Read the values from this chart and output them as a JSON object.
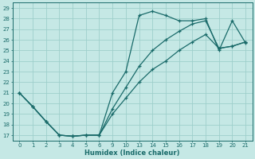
{
  "xlabel": "Humidex (Indice chaleur)",
  "background_color": "#c5e8e5",
  "grid_color": "#9ecfcb",
  "line_color": "#1a6b6a",
  "xtick_labels": [
    "0",
    "1",
    "2",
    "3",
    "4",
    "5",
    "6",
    "9",
    "10",
    "13",
    "14",
    "15",
    "16",
    "17",
    "18",
    "19",
    "20",
    "21"
  ],
  "ytick_labels": [
    "17",
    "18",
    "19",
    "20",
    "21",
    "22",
    "23",
    "24",
    "25",
    "26",
    "27",
    "28",
    "29"
  ],
  "ytick_vals": [
    17,
    18,
    19,
    20,
    21,
    22,
    23,
    24,
    25,
    26,
    27,
    28,
    29
  ],
  "ylim": [
    16.5,
    29.5
  ],
  "lines": [
    {
      "xi": [
        0,
        1,
        2,
        3,
        4,
        5,
        6,
        7,
        8,
        9,
        10,
        11,
        12,
        13,
        14,
        15,
        16,
        17
      ],
      "y": [
        21,
        19.7,
        18.3,
        17.0,
        16.9,
        17.0,
        17.0,
        21.0,
        23.0,
        28.3,
        28.7,
        28.3,
        27.8,
        27.8,
        28.0,
        25.0,
        27.8,
        25.7
      ]
    },
    {
      "xi": [
        0,
        1,
        2,
        3,
        4,
        5,
        6,
        7,
        8,
        9,
        10,
        11,
        12,
        13,
        14,
        15,
        16,
        17
      ],
      "y": [
        21,
        19.7,
        18.3,
        17.0,
        16.9,
        17.0,
        17.0,
        19.5,
        21.5,
        23.5,
        25.0,
        26.0,
        26.8,
        27.5,
        27.8,
        25.2,
        25.4,
        25.8
      ]
    },
    {
      "xi": [
        0,
        1,
        2,
        3,
        4,
        5,
        6,
        7,
        8,
        9,
        10,
        11,
        12,
        13,
        14,
        15,
        16,
        17
      ],
      "y": [
        21,
        19.7,
        18.3,
        17.0,
        16.9,
        17.0,
        17.0,
        19.0,
        20.5,
        22.0,
        23.2,
        24.0,
        25.0,
        25.8,
        26.5,
        25.2,
        25.4,
        25.8
      ]
    }
  ]
}
